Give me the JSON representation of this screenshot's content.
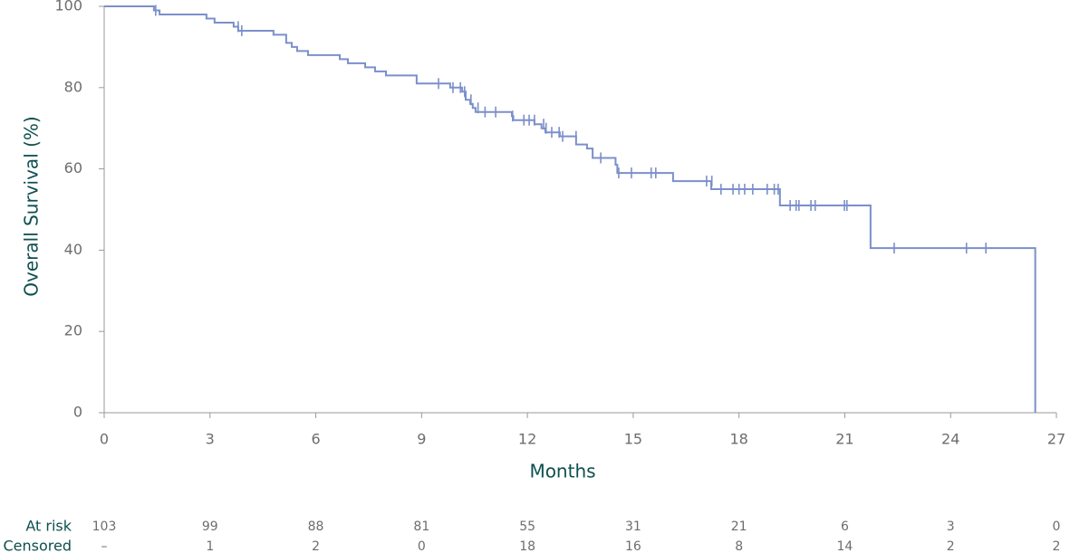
{
  "chart_data": {
    "type": "line",
    "step": "post",
    "xlabel": "Months",
    "ylabel": "Overall Survival (%)",
    "xlim": [
      0,
      27
    ],
    "xticks": [
      0,
      3,
      6,
      9,
      12,
      15,
      18,
      21,
      24,
      27
    ],
    "ylim": [
      0,
      100
    ],
    "yticks": [
      0,
      20,
      40,
      60,
      80,
      100
    ],
    "series": [
      {
        "color": "#7b8fcb",
        "x": [
          0,
          1.41,
          1.57,
          2.9,
          3.13,
          3.67,
          3.8,
          4.8,
          5.16,
          5.32,
          5.47,
          5.78,
          6.68,
          6.91,
          7.4,
          7.68,
          7.99,
          8.86,
          9.81,
          10.15,
          10.25,
          10.38,
          10.45,
          10.53,
          11.56,
          11.6,
          12.2,
          12.4,
          12.51,
          12.92,
          13.38,
          13.69,
          13.85,
          14.5,
          14.55,
          16.13,
          17.21,
          19.16,
          21.73,
          26.4
        ],
        "values": [
          100,
          99,
          98,
          97,
          96,
          95,
          94,
          93,
          91,
          90,
          89,
          88,
          87,
          86,
          85,
          84,
          83,
          81,
          80,
          79,
          77,
          76,
          75,
          74,
          73,
          72,
          71,
          70,
          69,
          68,
          66,
          65,
          62.7,
          61,
          59,
          57,
          55,
          51,
          40.5,
          0
        ]
      }
    ],
    "censored": {
      "color": "#7b8fcb",
      "x": [
        1.46,
        3.8,
        3.9,
        9.48,
        9.89,
        10.1,
        10.22,
        10.4,
        10.6,
        10.8,
        11.1,
        11.58,
        11.9,
        12.05,
        12.2,
        12.46,
        12.53,
        12.69,
        12.9,
        13.0,
        13.38,
        14.08,
        14.59,
        14.95,
        15.51,
        15.64,
        17.08,
        17.23,
        17.49,
        17.83,
        18.0,
        18.16,
        18.39,
        18.8,
        19.0,
        19.11,
        19.45,
        19.62,
        19.7,
        20.04,
        20.16,
        20.99,
        21.06,
        22.4,
        24.45,
        25.0
      ],
      "values": [
        99,
        95,
        94,
        81,
        80,
        80,
        79,
        77,
        75,
        74,
        74,
        73,
        72,
        72,
        72,
        71,
        70,
        69,
        69,
        68,
        68,
        62.7,
        59,
        59,
        59,
        59,
        57,
        57,
        55,
        55,
        55,
        55,
        55,
        55,
        55,
        55,
        51,
        51,
        51,
        51,
        51,
        51,
        51,
        40.5,
        40.5,
        40.5
      ]
    },
    "risk_table": [
      {
        "label": "At risk",
        "values": [
          103,
          99,
          88,
          81,
          55,
          31,
          21,
          6,
          3,
          0
        ]
      },
      {
        "label": "Censored",
        "values": [
          "–",
          1,
          2,
          0,
          18,
          16,
          8,
          14,
          2,
          2
        ]
      }
    ]
  }
}
